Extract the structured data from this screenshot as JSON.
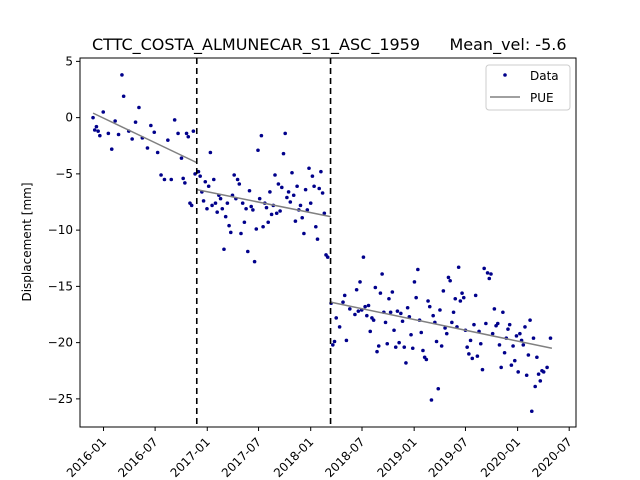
{
  "chart_data": {
    "type": "scatter",
    "title": "CTTC_COSTA_ALMUNECAR_S1_ASC_1959",
    "mean_vel_text": "Mean_vel: -5.6",
    "xlabel": "",
    "ylabel": "Displacement [mm]",
    "xlim": [
      "2015-10-10",
      "2020-07-25"
    ],
    "ylim": [
      -27.5,
      5.3
    ],
    "yticks": [
      5,
      0,
      -5,
      -10,
      -15,
      -20,
      -25
    ],
    "xticks": [
      "2016-01",
      "2016-07",
      "2017-01",
      "2017-07",
      "2018-01",
      "2018-07",
      "2019-01",
      "2019-07",
      "2020-01",
      "2020-07"
    ],
    "breaks": [
      "2016-11-25",
      "2018-03-12"
    ],
    "legend": {
      "location": "top-right",
      "data_label": "Data",
      "fit_label": "PUE"
    },
    "colors": {
      "data": "#00008b",
      "fit": "#808080",
      "breaks": "#000000"
    },
    "fit_segments": [
      {
        "x": [
          "2015-11-25",
          "2016-11-25"
        ],
        "y": [
          0.4,
          -4.0
        ]
      },
      {
        "x": [
          "2016-11-25",
          "2018-03-12"
        ],
        "y": [
          -6.4,
          -8.8
        ]
      },
      {
        "x": [
          "2018-03-12",
          "2020-05-01"
        ],
        "y": [
          -16.4,
          -20.5
        ]
      }
    ],
    "series": [
      {
        "name": "Data",
        "points": [
          [
            "2015-11-25",
            0.0
          ],
          [
            "2015-12-01",
            -1.1
          ],
          [
            "2015-12-07",
            -0.8
          ],
          [
            "2015-12-13",
            -1.2
          ],
          [
            "2015-12-19",
            -1.6
          ],
          [
            "2015-12-31",
            0.5
          ],
          [
            "2016-01-18",
            -1.4
          ],
          [
            "2016-01-30",
            -2.8
          ],
          [
            "2016-02-11",
            -0.3
          ],
          [
            "2016-02-23",
            -1.5
          ],
          [
            "2016-03-06",
            3.8
          ],
          [
            "2016-03-12",
            1.9
          ],
          [
            "2016-03-30",
            -1.2
          ],
          [
            "2016-04-11",
            -1.9
          ],
          [
            "2016-04-23",
            -0.4
          ],
          [
            "2016-05-05",
            0.9
          ],
          [
            "2016-05-17",
            -1.8
          ],
          [
            "2016-06-04",
            -2.7
          ],
          [
            "2016-06-16",
            -0.7
          ],
          [
            "2016-06-28",
            -1.3
          ],
          [
            "2016-07-10",
            -3.1
          ],
          [
            "2016-07-22",
            -5.1
          ],
          [
            "2016-08-03",
            -5.5
          ],
          [
            "2016-08-15",
            -2.0
          ],
          [
            "2016-08-27",
            -5.5
          ],
          [
            "2016-09-08",
            -0.2
          ],
          [
            "2016-09-20",
            -1.4
          ],
          [
            "2016-10-02",
            -3.6
          ],
          [
            "2016-10-08",
            -5.4
          ],
          [
            "2016-10-14",
            -5.8
          ],
          [
            "2016-10-20",
            -1.4
          ],
          [
            "2016-10-26",
            -1.7
          ],
          [
            "2016-11-01",
            -7.6
          ],
          [
            "2016-11-07",
            -7.8
          ],
          [
            "2016-11-13",
            -1.2
          ],
          [
            "2016-11-19",
            -5.0
          ],
          [
            "2016-12-01",
            -4.8
          ],
          [
            "2016-12-07",
            -5.2
          ],
          [
            "2016-12-13",
            -6.6
          ],
          [
            "2016-12-19",
            -7.4
          ],
          [
            "2016-12-25",
            -5.7
          ],
          [
            "2016-12-31",
            -8.1
          ],
          [
            "2017-01-06",
            -6.1
          ],
          [
            "2017-01-12",
            -3.1
          ],
          [
            "2017-01-18",
            -7.8
          ],
          [
            "2017-01-24",
            -5.5
          ],
          [
            "2017-01-30",
            -7.6
          ],
          [
            "2017-02-05",
            -8.4
          ],
          [
            "2017-02-11",
            -6.9
          ],
          [
            "2017-02-17",
            -7.2
          ],
          [
            "2017-02-23",
            -8.1
          ],
          [
            "2017-03-01",
            -11.7
          ],
          [
            "2017-03-07",
            -8.8
          ],
          [
            "2017-03-13",
            -7.6
          ],
          [
            "2017-03-19",
            -9.6
          ],
          [
            "2017-03-25",
            -10.2
          ],
          [
            "2017-03-31",
            -6.9
          ],
          [
            "2017-04-06",
            -5.1
          ],
          [
            "2017-04-12",
            -7.2
          ],
          [
            "2017-04-18",
            -5.5
          ],
          [
            "2017-04-24",
            -5.9
          ],
          [
            "2017-04-30",
            -10.3
          ],
          [
            "2017-05-06",
            -7.6
          ],
          [
            "2017-05-12",
            -9.3
          ],
          [
            "2017-05-18",
            -8.1
          ],
          [
            "2017-05-24",
            -11.9
          ],
          [
            "2017-05-30",
            -6.5
          ],
          [
            "2017-06-05",
            -7.9
          ],
          [
            "2017-06-11",
            -8.2
          ],
          [
            "2017-06-17",
            -12.8
          ],
          [
            "2017-06-23",
            -9.9
          ],
          [
            "2017-06-29",
            -2.9
          ],
          [
            "2017-07-05",
            -7.2
          ],
          [
            "2017-07-11",
            -1.6
          ],
          [
            "2017-07-17",
            -9.7
          ],
          [
            "2017-07-23",
            -7.6
          ],
          [
            "2017-07-29",
            -8.0
          ],
          [
            "2017-08-04",
            -9.3
          ],
          [
            "2017-08-10",
            -6.6
          ],
          [
            "2017-08-16",
            -8.6
          ],
          [
            "2017-08-22",
            -7.8
          ],
          [
            "2017-08-28",
            -5.1
          ],
          [
            "2017-09-03",
            -8.5
          ],
          [
            "2017-09-09",
            -5.9
          ],
          [
            "2017-09-15",
            -8.3
          ],
          [
            "2017-09-21",
            -6.2
          ],
          [
            "2017-09-27",
            -3.2
          ],
          [
            "2017-10-03",
            -1.4
          ],
          [
            "2017-10-09",
            -7.1
          ],
          [
            "2017-10-15",
            -6.6
          ],
          [
            "2017-10-21",
            -7.5
          ],
          [
            "2017-10-27",
            -4.9
          ],
          [
            "2017-11-02",
            -6.9
          ],
          [
            "2017-11-08",
            -9.2
          ],
          [
            "2017-11-14",
            -6.1
          ],
          [
            "2017-11-20",
            -8.2
          ],
          [
            "2017-11-26",
            -7.8
          ],
          [
            "2017-12-02",
            -8.9
          ],
          [
            "2017-12-08",
            -10.3
          ],
          [
            "2017-12-14",
            -6.4
          ],
          [
            "2017-12-20",
            -8.2
          ],
          [
            "2017-12-26",
            -4.5
          ],
          [
            "2018-01-01",
            -7.6
          ],
          [
            "2018-01-07",
            -5.2
          ],
          [
            "2018-01-13",
            -6.1
          ],
          [
            "2018-01-19",
            -9.7
          ],
          [
            "2018-01-25",
            -10.8
          ],
          [
            "2018-01-31",
            -6.3
          ],
          [
            "2018-02-06",
            -4.8
          ],
          [
            "2018-02-12",
            -6.7
          ],
          [
            "2018-02-18",
            -8.5
          ],
          [
            "2018-02-24",
            -12.2
          ],
          [
            "2018-03-02",
            -12.4
          ],
          [
            "2018-03-14",
            -16.5
          ],
          [
            "2018-03-20",
            -20.2
          ],
          [
            "2018-03-26",
            -19.9
          ],
          [
            "2018-04-01",
            -17.8
          ],
          [
            "2018-04-13",
            -18.6
          ],
          [
            "2018-04-25",
            -16.4
          ],
          [
            "2018-05-01",
            -15.8
          ],
          [
            "2018-05-07",
            -19.8
          ],
          [
            "2018-05-19",
            -17.0
          ],
          [
            "2018-06-06",
            -17.5
          ],
          [
            "2018-06-12",
            -15.3
          ],
          [
            "2018-06-18",
            -17.2
          ],
          [
            "2018-06-24",
            -14.6
          ],
          [
            "2018-06-30",
            -17.1
          ],
          [
            "2018-07-06",
            -12.4
          ],
          [
            "2018-07-12",
            -16.8
          ],
          [
            "2018-07-18",
            -17.6
          ],
          [
            "2018-07-24",
            -16.7
          ],
          [
            "2018-07-30",
            -19.0
          ],
          [
            "2018-08-05",
            -17.8
          ],
          [
            "2018-08-11",
            -18.0
          ],
          [
            "2018-08-17",
            -15.1
          ],
          [
            "2018-08-23",
            -20.8
          ],
          [
            "2018-08-29",
            -20.3
          ],
          [
            "2018-09-04",
            -15.6
          ],
          [
            "2018-09-10",
            -13.9
          ],
          [
            "2018-09-16",
            -17.3
          ],
          [
            "2018-09-22",
            -18.2
          ],
          [
            "2018-09-28",
            -20.1
          ],
          [
            "2018-10-04",
            -16.1
          ],
          [
            "2018-10-10",
            -17.3
          ],
          [
            "2018-10-16",
            -15.5
          ],
          [
            "2018-10-22",
            -18.9
          ],
          [
            "2018-10-28",
            -20.4
          ],
          [
            "2018-11-03",
            -17.2
          ],
          [
            "2018-11-09",
            -20.0
          ],
          [
            "2018-11-15",
            -17.4
          ],
          [
            "2018-11-21",
            -18.1
          ],
          [
            "2018-11-27",
            -20.4
          ],
          [
            "2018-12-03",
            -21.8
          ],
          [
            "2018-12-09",
            -16.9
          ],
          [
            "2018-12-15",
            -17.7
          ],
          [
            "2018-12-21",
            -19.3
          ],
          [
            "2018-12-27",
            -20.5
          ],
          [
            "2019-01-02",
            -14.6
          ],
          [
            "2019-01-08",
            -16.0
          ],
          [
            "2019-01-14",
            -13.5
          ],
          [
            "2019-01-20",
            -18.0
          ],
          [
            "2019-01-26",
            -19.1
          ],
          [
            "2019-02-01",
            -20.7
          ],
          [
            "2019-02-07",
            -21.3
          ],
          [
            "2019-02-13",
            -21.5
          ],
          [
            "2019-02-19",
            -16.3
          ],
          [
            "2019-02-25",
            -16.8
          ],
          [
            "2019-03-03",
            -25.1
          ],
          [
            "2019-03-09",
            -17.6
          ],
          [
            "2019-03-15",
            -18.2
          ],
          [
            "2019-03-21",
            -19.9
          ],
          [
            "2019-03-27",
            -24.1
          ],
          [
            "2019-04-02",
            -17.1
          ],
          [
            "2019-04-08",
            -20.3
          ],
          [
            "2019-04-14",
            -15.4
          ],
          [
            "2019-04-20",
            -18.7
          ],
          [
            "2019-04-26",
            -19.2
          ],
          [
            "2019-05-02",
            -14.2
          ],
          [
            "2019-05-08",
            -14.5
          ],
          [
            "2019-05-14",
            -18.2
          ],
          [
            "2019-05-20",
            -17.3
          ],
          [
            "2019-05-26",
            -16.1
          ],
          [
            "2019-06-01",
            -18.6
          ],
          [
            "2019-06-07",
            -13.3
          ],
          [
            "2019-06-13",
            -16.3
          ],
          [
            "2019-06-19",
            -15.6
          ],
          [
            "2019-06-25",
            -16.0
          ],
          [
            "2019-07-01",
            -18.9
          ],
          [
            "2019-07-07",
            -20.4
          ],
          [
            "2019-07-13",
            -21.0
          ],
          [
            "2019-07-19",
            -19.8
          ],
          [
            "2019-07-25",
            -21.4
          ],
          [
            "2019-07-31",
            -18.4
          ],
          [
            "2019-08-06",
            -15.8
          ],
          [
            "2019-08-12",
            -21.2
          ],
          [
            "2019-08-18",
            -19.0
          ],
          [
            "2019-08-24",
            -20.1
          ],
          [
            "2019-08-30",
            -22.4
          ],
          [
            "2019-09-05",
            -13.4
          ],
          [
            "2019-09-11",
            -18.3
          ],
          [
            "2019-09-17",
            -13.8
          ],
          [
            "2019-09-23",
            -14.3
          ],
          [
            "2019-09-29",
            -13.9
          ],
          [
            "2019-10-05",
            -19.2
          ],
          [
            "2019-10-11",
            -17.0
          ],
          [
            "2019-10-17",
            -18.5
          ],
          [
            "2019-10-23",
            -18.3
          ],
          [
            "2019-10-29",
            -20.2
          ],
          [
            "2019-11-04",
            -22.2
          ],
          [
            "2019-11-10",
            -17.3
          ],
          [
            "2019-11-16",
            -20.9
          ],
          [
            "2019-11-22",
            -19.6
          ],
          [
            "2019-11-28",
            -18.8
          ],
          [
            "2019-12-04",
            -18.4
          ],
          [
            "2019-12-10",
            -22.0
          ],
          [
            "2019-12-16",
            -20.3
          ],
          [
            "2019-12-22",
            -21.6
          ],
          [
            "2019-12-28",
            -19.4
          ],
          [
            "2020-01-03",
            -22.6
          ],
          [
            "2020-01-09",
            -19.2
          ],
          [
            "2020-01-15",
            -19.8
          ],
          [
            "2020-01-21",
            -20.2
          ],
          [
            "2020-01-27",
            -18.6
          ],
          [
            "2020-02-02",
            -22.9
          ],
          [
            "2020-02-08",
            -21.1
          ],
          [
            "2020-02-14",
            -18.0
          ],
          [
            "2020-02-20",
            -26.1
          ],
          [
            "2020-02-26",
            -19.6
          ],
          [
            "2020-03-03",
            -23.9
          ],
          [
            "2020-03-09",
            -21.3
          ],
          [
            "2020-03-15",
            -22.8
          ],
          [
            "2020-03-21",
            -23.4
          ],
          [
            "2020-03-27",
            -22.5
          ],
          [
            "2020-04-02",
            -22.6
          ],
          [
            "2020-04-14",
            -22.2
          ],
          [
            "2020-04-26",
            -19.6
          ]
        ]
      }
    ]
  }
}
